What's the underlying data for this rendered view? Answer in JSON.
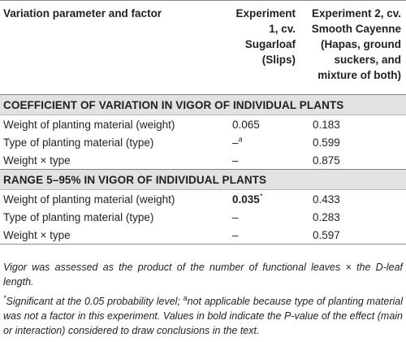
{
  "table": {
    "headers": {
      "col1": "Variation parameter and factor",
      "col2_lines": [
        "Experiment",
        "1, cv.",
        "Sugarloaf",
        "(Slips)"
      ],
      "col3_lines": [
        "Experiment 2, cv.",
        "Smooth Cayenne",
        "(Hapas, ground",
        "suckers, and",
        "mixture of both)"
      ]
    },
    "sections": [
      {
        "title": "COEFFICIENT OF VARIATION IN VIGOR OF INDIVIDUAL PLANTS",
        "rows": [
          {
            "factor": "Weight of planting material (weight)",
            "exp1": "0.065",
            "exp1_sup": "",
            "exp2": "0.183"
          },
          {
            "factor": "Type of planting material (type)",
            "exp1": "–",
            "exp1_sup": "a",
            "exp2": "0.599"
          },
          {
            "factor": "Weight × type",
            "exp1": "–",
            "exp1_sup": "",
            "exp2": "0.875"
          }
        ]
      },
      {
        "title": "RANGE 5–95% IN VIGOR OF INDIVIDUAL PLANTS",
        "rows": [
          {
            "factor": "Weight of planting material (weight)",
            "exp1": "0.035",
            "exp1_sup": "*",
            "exp2": "0.433"
          },
          {
            "factor": "Type of planting material (type)",
            "exp1": "–",
            "exp1_sup": "",
            "exp2": "0.283"
          },
          {
            "factor": "Weight × type",
            "exp1": "–",
            "exp1_sup": "",
            "exp2": "0.597"
          }
        ]
      }
    ]
  },
  "notes": {
    "vigor": "Vigor was assessed as the product of the number of functional leaves × the D-leaf length.",
    "sig_marker": "*",
    "sig_text": "Significant at the 0.05 probability level; ",
    "na_marker": "a",
    "na_text": "not applicable because type of planting material was not a factor in this experiment. Values in bold indicate the P-value of the effect (main or interaction) considered to draw conclusions in the text."
  }
}
